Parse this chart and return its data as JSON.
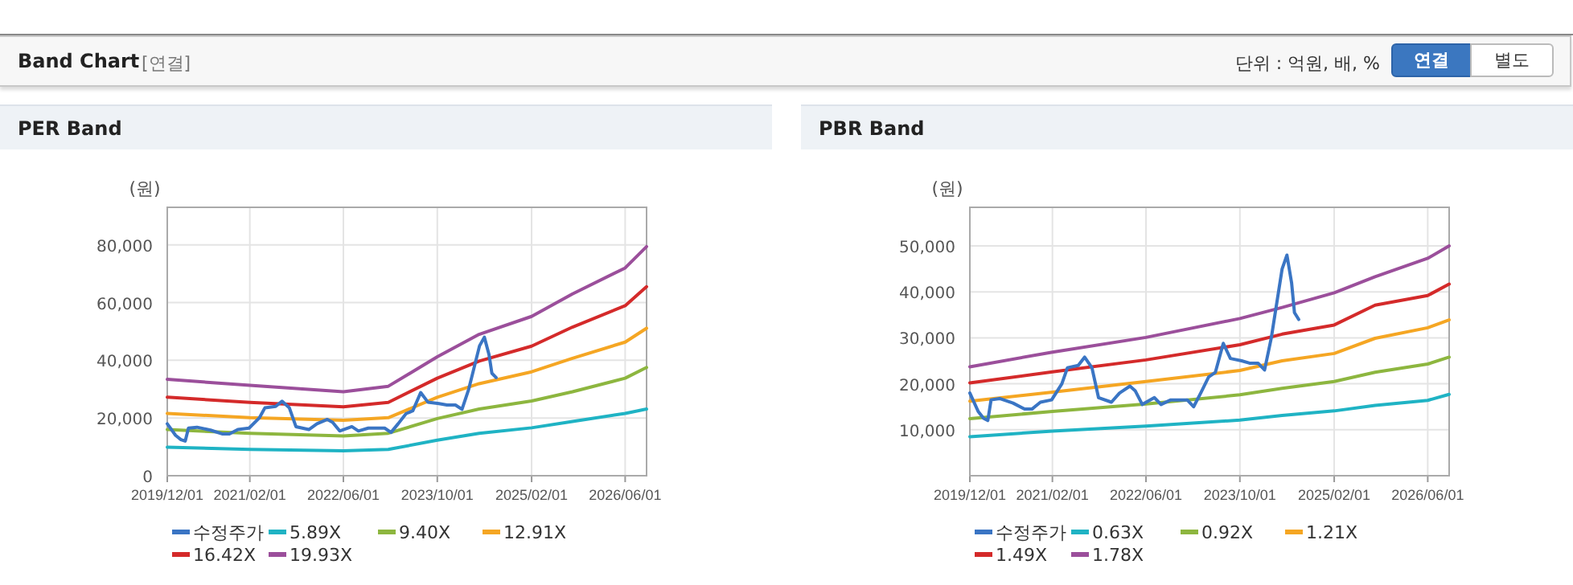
{
  "chart_data": [
    {
      "type": "other",
      "title": "Band Chart",
      "annotations": [
        "[연결]",
        "단위 : 억원, 배, %",
        "연결",
        "별도"
      ]
    },
    {
      "type": "line",
      "title": "PER Band",
      "ylabel": "(원)",
      "grid": true,
      "legend": "bottom",
      "marker": "none",
      "xlim": [
        "2019-12-01",
        "2026-09-20"
      ],
      "xticks": [
        {
          "value": "2019-12-01",
          "label": "2019/12/01"
        },
        {
          "value": "2021-02-01",
          "label": "2021/02/01"
        },
        {
          "value": "2022-06-01",
          "label": "2022/06/01"
        },
        {
          "value": "2023-10-01",
          "label": "2023/10/01"
        },
        {
          "value": "2025-02-01",
          "label": "2025/02/01"
        },
        {
          "value": "2026-06-01",
          "label": "2026/06/01"
        }
      ],
      "ylim": [
        0,
        93000
      ],
      "yticks": [
        0,
        {
          "value": 20000,
          "label": "20,000"
        },
        {
          "value": 40000,
          "label": "40,000"
        },
        {
          "value": 60000,
          "label": "60,000"
        },
        {
          "value": 80000,
          "label": "80,000"
        }
      ],
      "series": [
        {
          "name": "수정주가",
          "color": "#3a75c4",
          "x": [
            "2019-12-01",
            "2020-01-13",
            "2020-02-10",
            "2020-03-03",
            "2020-03-20",
            "2020-05-03",
            "2020-07-12",
            "2020-09-10",
            "2020-10-18",
            "2020-12-01",
            "2021-01-28",
            "2021-03-22",
            "2021-04-20",
            "2021-06-15",
            "2021-07-18",
            "2021-08-25",
            "2021-09-28",
            "2021-12-04",
            "2022-01-15",
            "2022-03-10",
            "2022-04-06",
            "2022-05-13",
            "2022-07-15",
            "2022-08-18",
            "2022-10-08",
            "2023-01-01",
            "2023-02-03",
            "2023-03-12",
            "2023-04-22",
            "2023-05-27",
            "2023-07-07",
            "2023-08-13",
            "2023-10-10",
            "2023-11-20",
            "2024-01-03",
            "2024-02-06",
            "2024-03-12",
            "2024-05-07",
            "2024-06-01",
            "2024-06-25",
            "2024-07-10",
            "2024-08-01"
          ],
          "values": [
            18000,
            14000,
            12500,
            12000,
            16500,
            16800,
            15800,
            14500,
            14500,
            16000,
            16500,
            20000,
            23500,
            24000,
            25800,
            23500,
            17000,
            16000,
            18000,
            19500,
            18500,
            15500,
            17000,
            15500,
            16500,
            16500,
            15000,
            18000,
            21500,
            22500,
            28800,
            25500,
            25000,
            24500,
            24500,
            23000,
            30000,
            45000,
            48000,
            42000,
            35500,
            34000
          ]
        },
        {
          "name": "5.89X",
          "color": "#1fb3c4",
          "x": [
            "2019-12-01",
            "2021-02-01",
            "2022-06-01",
            "2023-01-20",
            "2023-10-01",
            "2024-05-05",
            "2025-02-01",
            "2025-09-01",
            "2026-06-01",
            "2026-09-20"
          ],
          "values": [
            9900,
            9100,
            8600,
            9100,
            12300,
            14700,
            16600,
            18800,
            21600,
            23100
          ]
        },
        {
          "name": "9.40X",
          "color": "#8db63f",
          "x": [
            "2019-12-01",
            "2021-02-01",
            "2022-06-01",
            "2023-01-20",
            "2023-10-01",
            "2024-05-05",
            "2025-02-01",
            "2025-09-01",
            "2026-06-01",
            "2026-09-20"
          ],
          "values": [
            16000,
            14700,
            13800,
            14700,
            19800,
            23100,
            25900,
            29100,
            33800,
            37500
          ]
        },
        {
          "name": "12.91X",
          "color": "#f5a623",
          "x": [
            "2019-12-01",
            "2021-02-01",
            "2022-06-01",
            "2023-01-20",
            "2023-10-01",
            "2024-05-05",
            "2025-02-01",
            "2025-09-01",
            "2026-06-01",
            "2026-09-20"
          ],
          "values": [
            21600,
            20100,
            19200,
            20100,
            27200,
            31900,
            36000,
            40700,
            46300,
            51100
          ]
        },
        {
          "name": "16.42X",
          "color": "#d42a2a",
          "x": [
            "2019-12-01",
            "2021-02-01",
            "2022-06-01",
            "2023-01-20",
            "2023-10-01",
            "2024-05-05",
            "2025-02-01",
            "2025-09-01",
            "2026-06-01",
            "2026-09-20"
          ],
          "values": [
            27200,
            25400,
            23900,
            25400,
            33800,
            39700,
            44900,
            51500,
            58900,
            65500
          ]
        },
        {
          "name": "19.93X",
          "color": "#9b4f9b",
          "x": [
            "2019-12-01",
            "2021-02-01",
            "2022-06-01",
            "2023-01-20",
            "2023-10-01",
            "2024-05-05",
            "2025-02-01",
            "2025-09-01",
            "2026-06-01",
            "2026-09-20"
          ],
          "values": [
            33400,
            31300,
            29100,
            31000,
            41200,
            49000,
            55200,
            63000,
            72000,
            79400
          ]
        }
      ]
    },
    {
      "type": "line",
      "title": "PBR Band",
      "ylabel": "(원)",
      "grid": true,
      "legend": "bottom",
      "marker": "none",
      "xlim": [
        "2019-12-01",
        "2026-09-20"
      ],
      "xticks": [
        {
          "value": "2019-12-01",
          "label": "2019/12/01"
        },
        {
          "value": "2021-02-01",
          "label": "2021/02/01"
        },
        {
          "value": "2022-06-01",
          "label": "2022/06/01"
        },
        {
          "value": "2023-10-01",
          "label": "2023/10/01"
        },
        {
          "value": "2025-02-01",
          "label": "2025/02/01"
        },
        {
          "value": "2026-06-01",
          "label": "2026/06/01"
        }
      ],
      "ylim": [
        0,
        58400
      ],
      "yticks": [
        {
          "value": 10000,
          "label": "10,000"
        },
        {
          "value": 20000,
          "label": "20,000"
        },
        {
          "value": 30000,
          "label": "30,000"
        },
        {
          "value": 40000,
          "label": "40,000"
        },
        {
          "value": 50000,
          "label": "50,000"
        }
      ],
      "series": [
        {
          "name": "수정주가",
          "color": "#3a75c4",
          "x": [
            "2019-12-01",
            "2020-01-13",
            "2020-02-10",
            "2020-03-03",
            "2020-03-20",
            "2020-05-03",
            "2020-07-12",
            "2020-09-10",
            "2020-10-18",
            "2020-12-01",
            "2021-01-28",
            "2021-03-22",
            "2021-04-20",
            "2021-06-15",
            "2021-07-18",
            "2021-08-25",
            "2021-09-28",
            "2021-12-04",
            "2022-01-15",
            "2022-03-10",
            "2022-04-06",
            "2022-05-13",
            "2022-07-15",
            "2022-08-18",
            "2022-10-08",
            "2023-01-01",
            "2023-02-03",
            "2023-03-12",
            "2023-04-22",
            "2023-05-27",
            "2023-07-07",
            "2023-08-13",
            "2023-10-10",
            "2023-11-20",
            "2024-01-03",
            "2024-02-06",
            "2024-03-12",
            "2024-05-07",
            "2024-06-01",
            "2024-06-25",
            "2024-07-10",
            "2024-08-01"
          ],
          "values": [
            18000,
            14000,
            12500,
            12000,
            16500,
            16800,
            15800,
            14500,
            14500,
            16000,
            16500,
            20000,
            23500,
            24000,
            25800,
            23500,
            17000,
            16000,
            18000,
            19500,
            18500,
            15500,
            17000,
            15500,
            16500,
            16500,
            15000,
            18000,
            21500,
            22500,
            28800,
            25500,
            25000,
            24500,
            24500,
            23000,
            30000,
            45000,
            48000,
            42000,
            35500,
            34000
          ]
        },
        {
          "name": "0.63X",
          "color": "#1fb3c4",
          "x": [
            "2019-12-01",
            "2021-02-01",
            "2022-06-01",
            "2023-10-01",
            "2024-05-07",
            "2025-02-01",
            "2025-09-01",
            "2026-06-01",
            "2026-09-20"
          ],
          "values": [
            8500,
            9700,
            10800,
            12100,
            13100,
            14100,
            15300,
            16400,
            17700
          ]
        },
        {
          "name": "0.92X",
          "color": "#8db63f",
          "x": [
            "2019-12-01",
            "2021-02-01",
            "2022-06-01",
            "2023-10-01",
            "2024-05-07",
            "2025-02-01",
            "2025-09-01",
            "2026-06-01",
            "2026-09-20"
          ],
          "values": [
            12400,
            14000,
            15600,
            17600,
            19000,
            20500,
            22500,
            24300,
            25800
          ]
        },
        {
          "name": "1.21X",
          "color": "#f5a623",
          "x": [
            "2019-12-01",
            "2021-02-01",
            "2022-06-01",
            "2023-10-01",
            "2024-05-07",
            "2025-02-01",
            "2025-09-01",
            "2026-06-01",
            "2026-09-20"
          ],
          "values": [
            16200,
            18200,
            20500,
            22900,
            25000,
            26600,
            29900,
            32200,
            33900
          ]
        },
        {
          "name": "1.49X",
          "color": "#d42a2a",
          "x": [
            "2019-12-01",
            "2021-02-01",
            "2022-06-01",
            "2023-10-01",
            "2024-05-07",
            "2025-02-01",
            "2025-09-01",
            "2026-06-01",
            "2026-09-20"
          ],
          "values": [
            20200,
            22600,
            25200,
            28500,
            30800,
            32800,
            37100,
            39200,
            41700
          ]
        },
        {
          "name": "1.78X",
          "color": "#9b4f9b",
          "x": [
            "2019-12-01",
            "2021-02-01",
            "2022-06-01",
            "2023-10-01",
            "2024-05-07",
            "2025-02-01",
            "2025-09-01",
            "2026-06-01",
            "2026-09-20"
          ],
          "values": [
            23700,
            26900,
            30100,
            34200,
            36600,
            39800,
            43300,
            47300,
            50000
          ]
        }
      ]
    }
  ]
}
